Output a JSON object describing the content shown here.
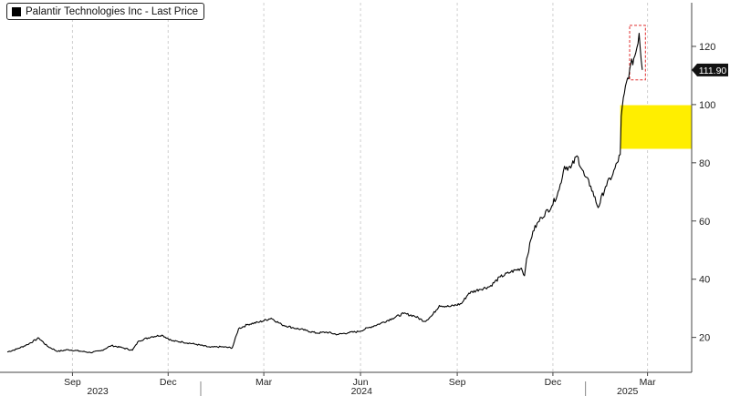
{
  "chart_data": {
    "type": "line",
    "legend": {
      "label": "Palantir Technologies Inc - Last Price",
      "placement": "top-left"
    },
    "last_price_label": "111.90",
    "y_axis": {
      "side": "right",
      "range": [
        8,
        135
      ],
      "ticks": [
        20,
        40,
        60,
        80,
        100,
        120
      ]
    },
    "x_axis": {
      "range": [
        "2023-07-01",
        "2025-04-12"
      ],
      "month_ticks": [
        {
          "date": "2023-09-01",
          "label": "Sep"
        },
        {
          "date": "2023-12-01",
          "label": "Dec"
        },
        {
          "date": "2024-03-01",
          "label": "Mar"
        },
        {
          "date": "2024-06-01",
          "label": "Jun"
        },
        {
          "date": "2024-09-01",
          "label": "Sep"
        },
        {
          "date": "2024-12-01",
          "label": "Dec"
        },
        {
          "date": "2025-03-01",
          "label": "Mar"
        }
      ],
      "year_labels": [
        {
          "date": "2023-09-25",
          "label": "2023"
        },
        {
          "date": "2024-06-02",
          "label": "2024"
        },
        {
          "date": "2025-02-10",
          "label": "2025"
        }
      ],
      "year_dividers": [
        "2024-01-01",
        "2025-01-01"
      ]
    },
    "grid": "vertical-dashed",
    "series": [
      {
        "color": "#000000",
        "points": [
          [
            "2023-07-01",
            15.0
          ],
          [
            "2023-07-10",
            16.0
          ],
          [
            "2023-07-20",
            17.5
          ],
          [
            "2023-07-31",
            19.8
          ],
          [
            "2023-08-08",
            17.0
          ],
          [
            "2023-08-18",
            15.2
          ],
          [
            "2023-08-28",
            15.8
          ],
          [
            "2023-09-08",
            15.3
          ],
          [
            "2023-09-18",
            14.8
          ],
          [
            "2023-09-28",
            15.4
          ],
          [
            "2023-10-08",
            17.2
          ],
          [
            "2023-10-18",
            16.5
          ],
          [
            "2023-10-28",
            15.6
          ],
          [
            "2023-11-03",
            18.8
          ],
          [
            "2023-11-15",
            20.2
          ],
          [
            "2023-11-25",
            20.8
          ],
          [
            "2023-12-05",
            18.8
          ],
          [
            "2023-12-15",
            18.4
          ],
          [
            "2023-12-28",
            17.6
          ],
          [
            "2024-01-10",
            16.6
          ],
          [
            "2024-01-20",
            16.8
          ],
          [
            "2024-01-31",
            16.4
          ],
          [
            "2024-02-06",
            23.0
          ],
          [
            "2024-02-15",
            24.5
          ],
          [
            "2024-02-26",
            25.3
          ],
          [
            "2024-03-08",
            26.6
          ],
          [
            "2024-03-18",
            24.4
          ],
          [
            "2024-03-28",
            23.4
          ],
          [
            "2024-04-10",
            22.4
          ],
          [
            "2024-04-20",
            21.5
          ],
          [
            "2024-04-30",
            21.8
          ],
          [
            "2024-05-10",
            21.0
          ],
          [
            "2024-05-20",
            21.6
          ],
          [
            "2024-05-30",
            22.0
          ],
          [
            "2024-06-10",
            23.5
          ],
          [
            "2024-06-20",
            24.8
          ],
          [
            "2024-07-01",
            26.5
          ],
          [
            "2024-07-12",
            28.2
          ],
          [
            "2024-07-22",
            27.4
          ],
          [
            "2024-08-01",
            25.5
          ],
          [
            "2024-08-08",
            27.5
          ],
          [
            "2024-08-15",
            31.0
          ],
          [
            "2024-08-25",
            30.6
          ],
          [
            "2024-09-05",
            31.6
          ],
          [
            "2024-09-12",
            35.2
          ],
          [
            "2024-09-22",
            36.5
          ],
          [
            "2024-10-02",
            37.5
          ],
          [
            "2024-10-12",
            40.8
          ],
          [
            "2024-10-22",
            42.5
          ],
          [
            "2024-11-01",
            43.8
          ],
          [
            "2024-11-04",
            41.2
          ],
          [
            "2024-11-06",
            47.0
          ],
          [
            "2024-11-12",
            56.5
          ],
          [
            "2024-11-20",
            61.2
          ],
          [
            "2024-11-30",
            65.2
          ],
          [
            "2024-12-07",
            70.8
          ],
          [
            "2024-12-12",
            78.8
          ],
          [
            "2024-12-18",
            78.2
          ],
          [
            "2024-12-24",
            82.4
          ],
          [
            "2024-12-31",
            75.6
          ],
          [
            "2025-01-06",
            72.0
          ],
          [
            "2025-01-13",
            64.6
          ],
          [
            "2025-01-20",
            71.8
          ],
          [
            "2025-01-27",
            76.0
          ],
          [
            "2025-02-03",
            82.8
          ],
          [
            "2025-02-04",
            96.0
          ],
          [
            "2025-02-07",
            104.0
          ],
          [
            "2025-02-12",
            112.0
          ],
          [
            "2025-02-18",
            118.0
          ],
          [
            "2025-02-21",
            124.5
          ],
          [
            "2025-02-24",
            111.9
          ]
        ]
      }
    ],
    "annotations": [
      {
        "type": "highlight-box",
        "color": "#ffee00",
        "x_range": [
          "2025-02-03",
          "2025-04-12"
        ],
        "y_range": [
          84.8,
          99.8
        ]
      },
      {
        "type": "dashed-box",
        "color": "#e03030",
        "x_range": [
          "2025-02-12",
          "2025-02-27"
        ],
        "y_range": [
          108.5,
          127.2
        ]
      }
    ]
  }
}
